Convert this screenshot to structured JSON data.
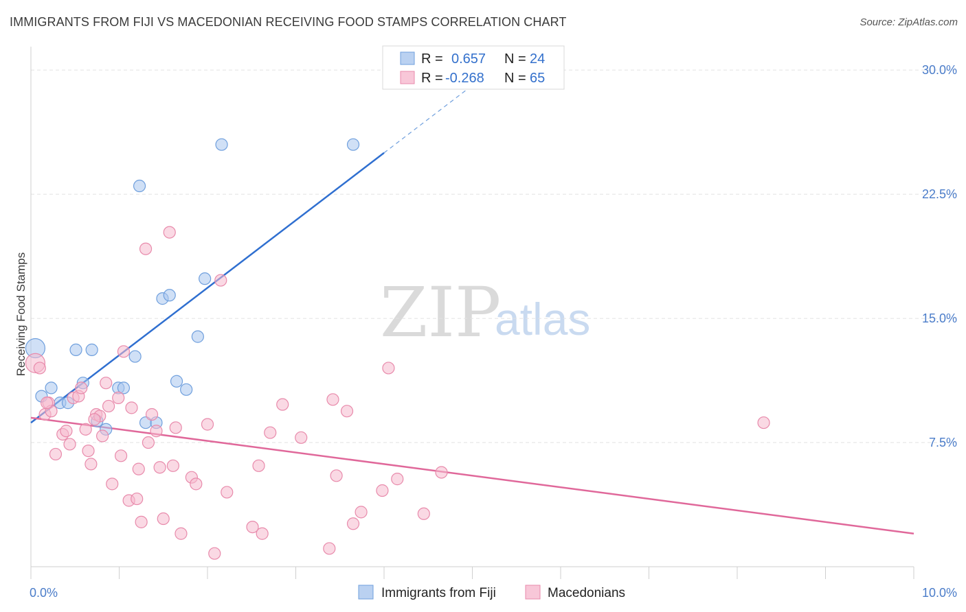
{
  "header": {
    "title": "IMMIGRANTS FROM FIJI VS MACEDONIAN RECEIVING FOOD STAMPS CORRELATION CHART",
    "source": "Source: ZipAtlas.com"
  },
  "watermark": {
    "zip": "ZIP",
    "atlas": "atlas"
  },
  "legend": {
    "rows": [
      {
        "r_label": "R =",
        "r_value": "0.657",
        "n_label": "N =",
        "n_value": "24"
      },
      {
        "r_label": "R =",
        "r_value": "-0.268",
        "n_label": "N =",
        "n_value": "65"
      }
    ]
  },
  "bottom_legend": {
    "items": [
      {
        "label": "Immigrants from Fiji"
      },
      {
        "label": "Macedonians"
      }
    ]
  },
  "colors": {
    "blue_fill": "#a9c6ee",
    "blue_stroke": "#6f9fdd",
    "blue_line": "#2f6fd0",
    "pink_fill": "#f6b9ce",
    "pink_stroke": "#e88aab",
    "pink_line": "#e0689a",
    "tick_text": "#4a7cc9",
    "grid": "#e2e2e2"
  },
  "chart_data": {
    "type": "scatter",
    "title": "IMMIGRANTS FROM FIJI VS MACEDONIAN RECEIVING FOOD STAMPS CORRELATION CHART",
    "ylabel": "Receiving Food Stamps",
    "xlabel": "",
    "xlim": [
      0,
      10
    ],
    "ylim": [
      0,
      31
    ],
    "x_tick_labels": [
      "0.0%",
      "10.0%"
    ],
    "y_ticks": [
      7.5,
      15.0,
      22.5,
      30.0
    ],
    "y_tick_labels": [
      "7.5%",
      "15.0%",
      "22.5%",
      "30.0%"
    ],
    "grid": true,
    "legend_position": "top-center",
    "series": [
      {
        "name": "Immigrants from Fiji",
        "R": 0.657,
        "N": 24,
        "trend": {
          "x0": 0,
          "y0": 8.7,
          "x1": 4.0,
          "y1": 25.0,
          "dashed_to_x": 5.0
        },
        "points": [
          [
            0.05,
            13.2
          ],
          [
            0.12,
            10.3
          ],
          [
            0.23,
            10.8
          ],
          [
            0.33,
            9.9
          ],
          [
            0.42,
            9.9
          ],
          [
            0.51,
            13.1
          ],
          [
            0.59,
            11.1
          ],
          [
            0.69,
            13.1
          ],
          [
            0.75,
            8.8
          ],
          [
            0.85,
            8.3
          ],
          [
            0.99,
            10.8
          ],
          [
            1.05,
            10.8
          ],
          [
            1.18,
            12.7
          ],
          [
            1.23,
            23.0
          ],
          [
            1.3,
            8.7
          ],
          [
            1.42,
            8.7
          ],
          [
            1.49,
            16.2
          ],
          [
            1.57,
            16.4
          ],
          [
            1.65,
            11.2
          ],
          [
            1.76,
            10.7
          ],
          [
            1.89,
            13.9
          ],
          [
            1.97,
            17.4
          ],
          [
            2.16,
            25.5
          ],
          [
            3.65,
            25.5
          ]
        ]
      },
      {
        "name": "Macedonians",
        "R": -0.268,
        "N": 65,
        "trend": {
          "x0": 0,
          "y0": 9.0,
          "x1": 10.0,
          "y1": 2.0
        },
        "points": [
          [
            0.05,
            12.3
          ],
          [
            0.1,
            12.0
          ],
          [
            0.16,
            9.2
          ],
          [
            0.2,
            9.9
          ],
          [
            0.23,
            9.4
          ],
          [
            0.28,
            6.8
          ],
          [
            0.36,
            8.0
          ],
          [
            0.4,
            8.2
          ],
          [
            0.44,
            7.4
          ],
          [
            0.48,
            10.2
          ],
          [
            0.54,
            10.3
          ],
          [
            0.57,
            10.8
          ],
          [
            0.62,
            8.3
          ],
          [
            0.65,
            7.0
          ],
          [
            0.68,
            6.2
          ],
          [
            0.74,
            9.2
          ],
          [
            0.78,
            9.1
          ],
          [
            0.81,
            7.9
          ],
          [
            0.85,
            11.1
          ],
          [
            0.88,
            9.7
          ],
          [
            0.92,
            5.0
          ],
          [
            0.99,
            10.2
          ],
          [
            1.02,
            6.7
          ],
          [
            1.05,
            13.0
          ],
          [
            1.11,
            4.0
          ],
          [
            1.14,
            9.6
          ],
          [
            1.2,
            4.1
          ],
          [
            1.22,
            5.9
          ],
          [
            1.25,
            2.7
          ],
          [
            1.3,
            19.2
          ],
          [
            1.33,
            7.5
          ],
          [
            1.37,
            9.2
          ],
          [
            1.42,
            8.2
          ],
          [
            1.46,
            6.0
          ],
          [
            1.5,
            2.9
          ],
          [
            1.57,
            20.2
          ],
          [
            1.61,
            6.1
          ],
          [
            1.64,
            8.4
          ],
          [
            1.7,
            2.0
          ],
          [
            1.82,
            5.4
          ],
          [
            1.87,
            5.0
          ],
          [
            2.0,
            8.6
          ],
          [
            2.08,
            0.8
          ],
          [
            2.15,
            17.3
          ],
          [
            2.22,
            4.5
          ],
          [
            2.51,
            2.4
          ],
          [
            2.58,
            6.1
          ],
          [
            2.62,
            2.0
          ],
          [
            2.71,
            8.1
          ],
          [
            2.85,
            9.8
          ],
          [
            3.06,
            7.8
          ],
          [
            3.38,
            1.1
          ],
          [
            3.42,
            10.1
          ],
          [
            3.46,
            5.5
          ],
          [
            3.58,
            9.4
          ],
          [
            3.65,
            2.6
          ],
          [
            3.74,
            3.3
          ],
          [
            3.98,
            4.6
          ],
          [
            4.05,
            12.0
          ],
          [
            4.15,
            5.3
          ],
          [
            4.45,
            3.2
          ],
          [
            4.65,
            5.7
          ],
          [
            8.3,
            8.7
          ],
          [
            0.18,
            9.9
          ],
          [
            0.72,
            8.9
          ]
        ]
      }
    ]
  }
}
